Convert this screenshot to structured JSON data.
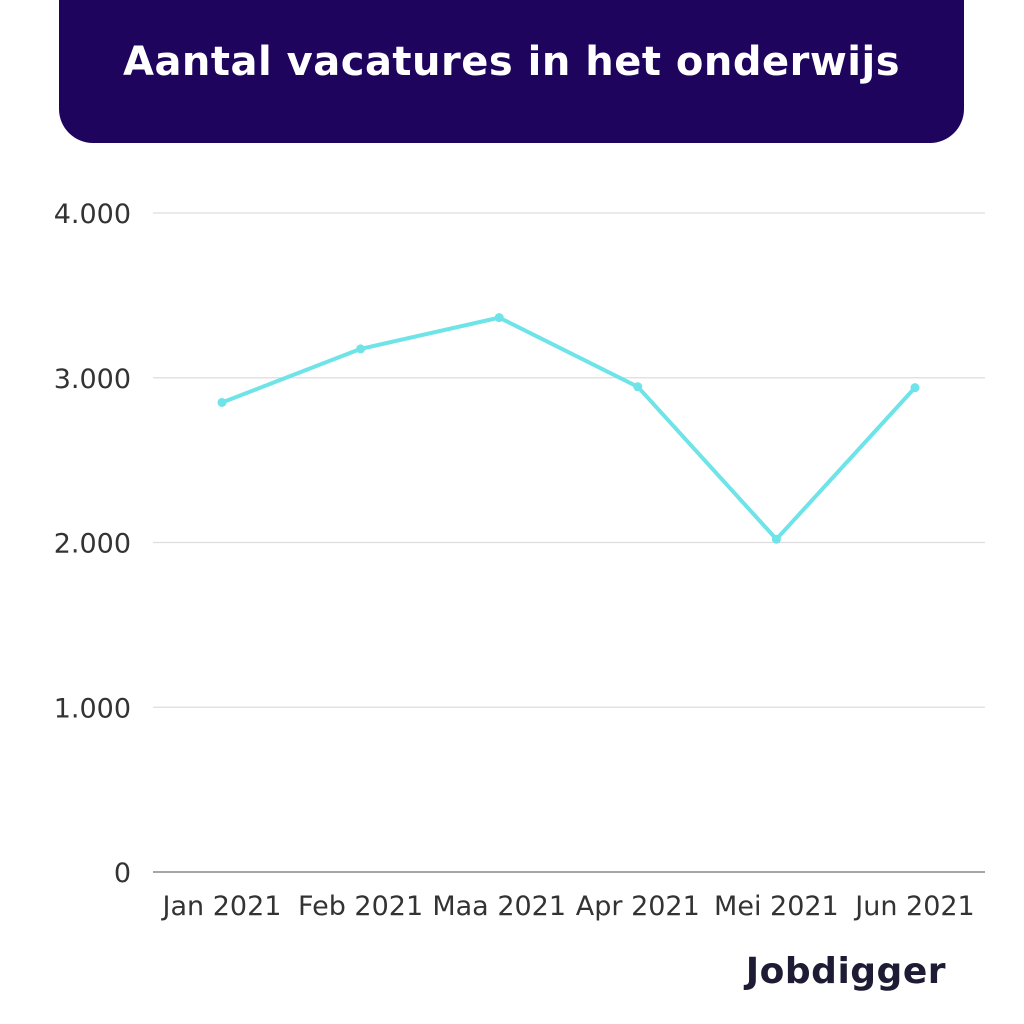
{
  "header": {
    "title": "Aantal vacatures in het onderwijs",
    "background": "#1e045c"
  },
  "logo": {
    "text": "Jobdigger"
  },
  "chart_data": {
    "type": "line",
    "title": "Aantal vacatures in het onderwijs",
    "xlabel": "",
    "ylabel": "",
    "categories": [
      "Jan 2021",
      "Feb 2021",
      "Maa 2021",
      "Apr 2021",
      "Mei 2021",
      "Jun 2021"
    ],
    "series": [
      {
        "values": [
          2850,
          3175,
          3365,
          2945,
          2020,
          2940
        ],
        "color": "#6ee3e8"
      }
    ],
    "ylim": [
      0,
      4000
    ],
    "yticks": [
      0,
      1000,
      2000,
      3000,
      4000
    ],
    "ytick_labels": [
      "0",
      "1.000",
      "2.000",
      "3.000",
      "4.000"
    ],
    "grid": true,
    "grid_color": "#dddddd",
    "legend": "none"
  }
}
